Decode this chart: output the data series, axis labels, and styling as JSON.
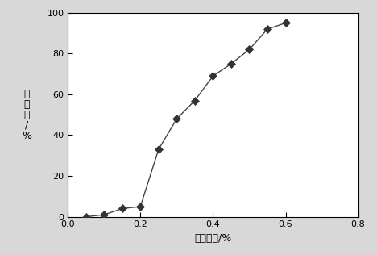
{
  "x": [
    0.05,
    0.1,
    0.15,
    0.2,
    0.25,
    0.3,
    0.35,
    0.4,
    0.45,
    0.5,
    0.55,
    0.6
  ],
  "y": [
    0,
    1,
    4,
    5,
    33,
    48,
    57,
    69,
    75,
    82,
    92,
    95
  ],
  "xlabel": "单体浓度/%",
  "ylabel_chars": [
    "转",
    "化",
    "率",
    "/",
    "%"
  ],
  "xlim": [
    0,
    0.8
  ],
  "ylim": [
    0,
    100
  ],
  "xticks": [
    0.0,
    0.2,
    0.4,
    0.6,
    0.8
  ],
  "yticks": [
    0,
    20,
    40,
    60,
    80,
    100
  ],
  "line_color": "#444444",
  "marker_color": "#333333",
  "marker": "D",
  "marker_size": 5,
  "line_width": 1.0,
  "background_color": "#d8d8d8",
  "plot_bg_color": "#ffffff"
}
